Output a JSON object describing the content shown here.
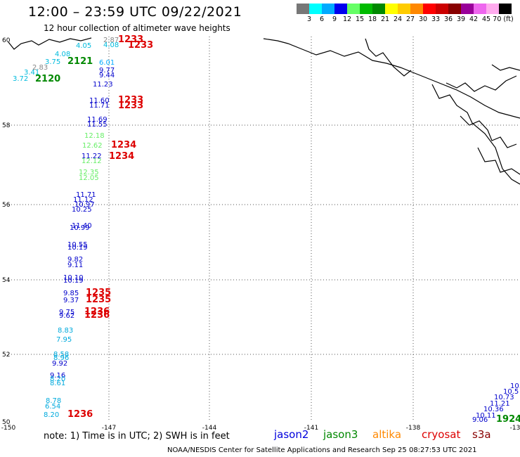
{
  "header": {
    "title": "12:00 – 23:59 UTC 09/22/2021",
    "subtitle": "12 hour collection of altimeter wave heights"
  },
  "legend": {
    "colors": [
      "#777777",
      "#00ffff",
      "#00aaff",
      "#0000ee",
      "#66ff66",
      "#00bb00",
      "#008800",
      "#ffff00",
      "#ffcc00",
      "#ff8800",
      "#ff0000",
      "#cc0000",
      "#880000",
      "#990099",
      "#ee66ee",
      "#ffaaee",
      "#000000"
    ],
    "labels": [
      "3",
      "6",
      "9",
      "12",
      "15",
      "18",
      "21",
      "24",
      "27",
      "30",
      "33",
      "36",
      "39",
      "42",
      "45",
      "70 (ft)"
    ]
  },
  "axes": {
    "lat_labels": [
      "60",
      "58",
      "56",
      "54",
      "52",
      "50"
    ],
    "lon_labels": [
      "-150",
      "-147",
      "-144",
      "-141",
      "-138",
      "-13"
    ]
  },
  "observations": [
    {
      "t": "2.87",
      "c": "#888888"
    },
    {
      "t": "1233",
      "c": "#dd0000"
    },
    {
      "t": "4.08",
      "c": "#00bbdd"
    },
    {
      "t": "1233",
      "c": "#dd0000"
    },
    {
      "t": "4.05",
      "c": "#00bbdd"
    },
    {
      "t": "4.08",
      "c": "#00bbdd"
    },
    {
      "t": "2121",
      "c": "#008800"
    },
    {
      "t": "3.75",
      "c": "#00bbdd"
    },
    {
      "t": "2.83",
      "c": "#888888"
    },
    {
      "t": "3.41",
      "c": "#00bbdd"
    },
    {
      "t": "3.72",
      "c": "#00bbdd"
    },
    {
      "t": "2120",
      "c": "#008800"
    },
    {
      "t": "6.01",
      "c": "#00aaff"
    },
    {
      "t": "9.77",
      "c": "#0000cc"
    },
    {
      "t": "9.44",
      "c": "#0000cc"
    },
    {
      "t": "11.23",
      "c": "#0000cc"
    },
    {
      "t": "11.60",
      "c": "#0000cc"
    },
    {
      "t": "11.71",
      "c": "#0000cc"
    },
    {
      "t": "1233",
      "c": "#dd0000"
    },
    {
      "t": "1233",
      "c": "#dd0000"
    },
    {
      "t": "11.69",
      "c": "#0000cc"
    },
    {
      "t": "11.55",
      "c": "#0000cc"
    },
    {
      "t": "12.18",
      "c": "#66ee66"
    },
    {
      "t": "12.62",
      "c": "#66ee66"
    },
    {
      "t": "1234",
      "c": "#dd0000"
    },
    {
      "t": "11.22",
      "c": "#0000cc"
    },
    {
      "t": "12.12",
      "c": "#66ee66"
    },
    {
      "t": "1234",
      "c": "#dd0000"
    },
    {
      "t": "12.35",
      "c": "#66ee66"
    },
    {
      "t": "12.05",
      "c": "#66ee66"
    },
    {
      "t": "11.71",
      "c": "#0000cc"
    },
    {
      "t": "11.12",
      "c": "#0000cc"
    },
    {
      "t": "10.97",
      "c": "#0000cc"
    },
    {
      "t": "10.25",
      "c": "#0000cc"
    },
    {
      "t": "11.40",
      "c": "#0000cc"
    },
    {
      "t": "10.99",
      "c": "#0000cc"
    },
    {
      "t": "10.55",
      "c": "#0000cc"
    },
    {
      "t": "10.19",
      "c": "#0000cc"
    },
    {
      "t": "9.82",
      "c": "#0000cc"
    },
    {
      "t": "9.11",
      "c": "#0000cc"
    },
    {
      "t": "10.10",
      "c": "#0000cc"
    },
    {
      "t": "10.19",
      "c": "#0000cc"
    },
    {
      "t": "9.85",
      "c": "#0000cc"
    },
    {
      "t": "1235",
      "c": "#dd0000"
    },
    {
      "t": "9.37",
      "c": "#0000cc"
    },
    {
      "t": "1235",
      "c": "#dd0000"
    },
    {
      "t": "9.75",
      "c": "#0000cc"
    },
    {
      "t": "1236",
      "c": "#dd0000"
    },
    {
      "t": "9.62",
      "c": "#0000cc"
    },
    {
      "t": "1236",
      "c": "#dd0000"
    },
    {
      "t": "8.83",
      "c": "#00aadd"
    },
    {
      "t": "7.95",
      "c": "#00aadd"
    },
    {
      "t": "8.58",
      "c": "#00aadd"
    },
    {
      "t": "8.96",
      "c": "#00aadd"
    },
    {
      "t": "9.92",
      "c": "#0000cc"
    },
    {
      "t": "9.16",
      "c": "#0000cc"
    },
    {
      "t": "8.20",
      "c": "#00aadd"
    },
    {
      "t": "8.61",
      "c": "#00aadd"
    },
    {
      "t": "8.78",
      "c": "#00aadd"
    },
    {
      "t": "6.54",
      "c": "#00aadd"
    },
    {
      "t": "8.20",
      "c": "#00aadd"
    },
    {
      "t": "1236",
      "c": "#dd0000"
    },
    {
      "t": "10.",
      "c": "#0000cc"
    },
    {
      "t": "10.5",
      "c": "#0000cc"
    },
    {
      "t": "10.73",
      "c": "#0000cc"
    },
    {
      "t": "11.21",
      "c": "#0000cc"
    },
    {
      "t": "10.36",
      "c": "#0000cc"
    },
    {
      "t": "10.11",
      "c": "#0000cc"
    },
    {
      "t": "9.06",
      "c": "#0000cc"
    },
    {
      "t": "1924",
      "c": "#008800"
    }
  ],
  "footer": {
    "note": "note:  1) Time is in UTC;  2) SWH is in feet",
    "satellites": [
      {
        "name": "jason2",
        "color": "#0000dd"
      },
      {
        "name": "jason3",
        "color": "#008800"
      },
      {
        "name": "altika",
        "color": "#ff8800"
      },
      {
        "name": "cryosat",
        "color": "#dd0000"
      },
      {
        "name": "s3a",
        "color": "#880000"
      }
    ],
    "credit": "NOAA/NESDIS Center for Satellite Applications and Research   Sep 25 08:27:53 UTC 2021"
  }
}
